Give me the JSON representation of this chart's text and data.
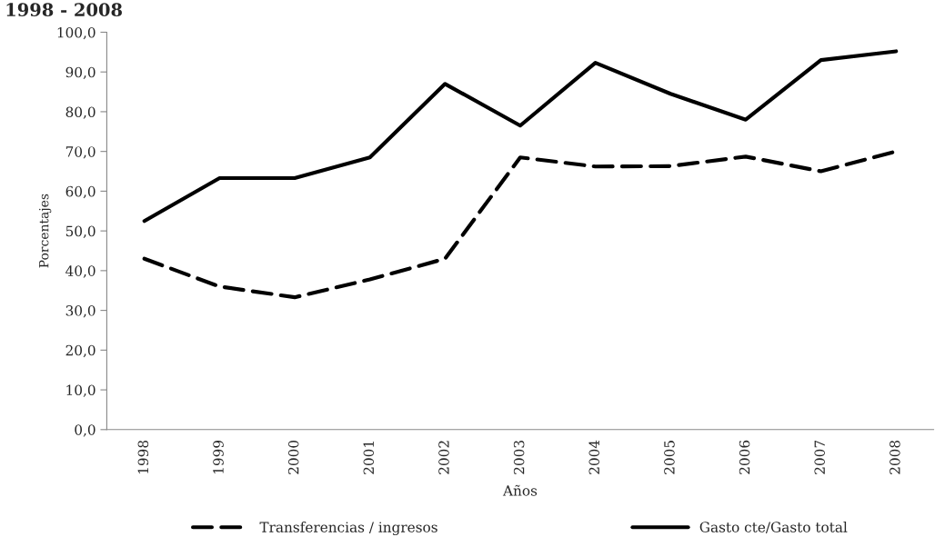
{
  "chart_data": {
    "type": "line",
    "title": "1998 - 2008",
    "xlabel": "Años",
    "ylabel": "Porcentajes",
    "categories": [
      "1998",
      "1999",
      "2000",
      "2001",
      "2002",
      "2003",
      "2004",
      "2005",
      "2006",
      "2007",
      "2008"
    ],
    "series": [
      {
        "name": "Transferencias / ingresos",
        "color": "#000000",
        "line_style": "dashed",
        "values": [
          43.0,
          36.0,
          33.3,
          37.8,
          43.0,
          68.5,
          66.2,
          66.3,
          68.7,
          65.0,
          70.0
        ]
      },
      {
        "name": "Gasto cte/Gasto total",
        "color": "#000000",
        "line_style": "solid",
        "values": [
          52.5,
          63.3,
          63.3,
          68.5,
          87.0,
          76.5,
          92.3,
          84.5,
          78.0,
          93.0,
          95.2
        ]
      }
    ],
    "ylim": [
      0,
      100
    ],
    "yticks": [
      {
        "value": 0,
        "label": "0,0"
      },
      {
        "value": 10,
        "label": "10,0"
      },
      {
        "value": 20,
        "label": "20,0"
      },
      {
        "value": 30,
        "label": "30,0"
      },
      {
        "value": 40,
        "label": "40,0"
      },
      {
        "value": 50,
        "label": "50,0"
      },
      {
        "value": 60,
        "label": "60,0"
      },
      {
        "value": 70,
        "label": "70,0"
      },
      {
        "value": 80,
        "label": "80,0"
      },
      {
        "value": 90,
        "label": "90,0"
      },
      {
        "value": 100,
        "label": "100,0"
      }
    ],
    "grid": false,
    "legend": "bottom",
    "marker": "none"
  }
}
